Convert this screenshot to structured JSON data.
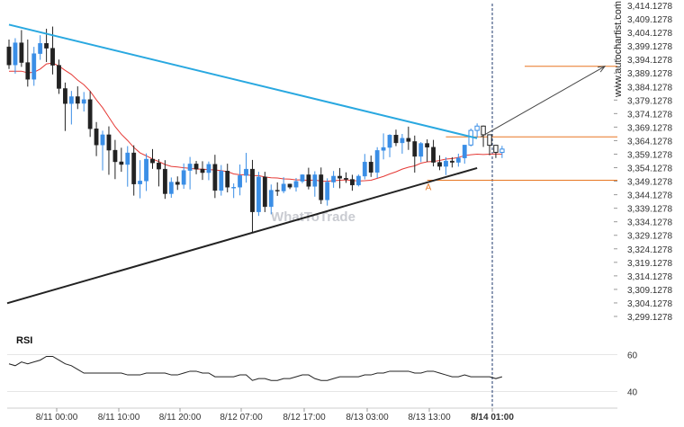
{
  "watermark": "WhatToTrade",
  "brand": "www.autochartist.com",
  "chart_data": [
    {
      "type": "candlestick",
      "title": "",
      "y_ticks": [
        "3,414.1278",
        "3,409.1278",
        "3,404.1278",
        "3,399.1278",
        "3,394.1278",
        "3,389.1278",
        "3,384.1278",
        "3,379.1278",
        "3,374.1278",
        "3,369.1278",
        "3,364.1278",
        "3,359.1278",
        "3,354.1278",
        "3,349.1278",
        "3,344.1278",
        "3,339.1278",
        "3,334.1278",
        "3,329.1278",
        "3,324.1278",
        "3,319.1278",
        "3,314.1278",
        "3,309.1278",
        "3,304.1278",
        "3,299.1278"
      ],
      "ylim": [
        3299.1278,
        3414.1278
      ],
      "x_ticks": [
        "8/11 00:00",
        "8/11 10:00",
        "8/11 20:00",
        "8/12 07:00",
        "8/12 17:00",
        "8/13 03:00",
        "8/13 13:00",
        "8/14 01:00"
      ],
      "highlight_tick": "8/14 01:00",
      "colors": {
        "up": "#3a8ee6",
        "down": "#222222",
        "ma": "#e53935",
        "resistance": "#29a8e0",
        "support": "#222222",
        "level": "#e87722",
        "projection": "#444444",
        "highlight": "#1f3a6e"
      },
      "candles": [
        [
          3398.8,
          3401.5,
          3390.6,
          3392.1
        ],
        [
          3392.1,
          3402.0,
          3388.9,
          3400.3
        ],
        [
          3400.3,
          3405.0,
          3391.4,
          3393.0
        ],
        [
          3393.0,
          3401.5,
          3384.1,
          3386.8
        ],
        [
          3386.8,
          3398.8,
          3384.4,
          3396.3
        ],
        [
          3396.3,
          3403.1,
          3394.0,
          3400.1
        ],
        [
          3400.1,
          3405.5,
          3393.2,
          3398.3
        ],
        [
          3398.3,
          3406.3,
          3388.6,
          3392.0
        ],
        [
          3392.0,
          3394.1,
          3381.4,
          3383.4
        ],
        [
          3383.4,
          3385.6,
          3367.7,
          3377.8
        ],
        [
          3377.8,
          3382.5,
          3370.1,
          3380.4
        ],
        [
          3380.4,
          3384.2,
          3375.8,
          3377.9
        ],
        [
          3377.9,
          3382.1,
          3374.9,
          3379.3
        ],
        [
          3379.3,
          3382.4,
          3365.5,
          3368.5
        ],
        [
          3368.5,
          3371.0,
          3358.4,
          3362.5
        ],
        [
          3362.5,
          3367.8,
          3353.1,
          3366.3
        ],
        [
          3366.3,
          3369.4,
          3351.5,
          3360.6
        ],
        [
          3360.6,
          3364.4,
          3349.9,
          3356.3
        ],
        [
          3356.3,
          3361.5,
          3352.6,
          3355.3
        ],
        [
          3355.3,
          3362.1,
          3347.1,
          3359.6
        ],
        [
          3359.6,
          3362.4,
          3343.8,
          3348.1
        ],
        [
          3348.1,
          3356.9,
          3342.8,
          3349.2
        ],
        [
          3349.2,
          3359.4,
          3345.5,
          3357.3
        ],
        [
          3357.3,
          3361.0,
          3353.7,
          3355.9
        ],
        [
          3355.9,
          3357.3,
          3347.2,
          3353.6
        ],
        [
          3353.6,
          3356.9,
          3342.6,
          3344.5
        ],
        [
          3344.5,
          3350.5,
          3343.0,
          3348.8
        ],
        [
          3348.8,
          3350.9,
          3345.9,
          3347.9
        ],
        [
          3347.9,
          3355.7,
          3346.3,
          3353.1
        ],
        [
          3353.1,
          3358.1,
          3346.1,
          3355.5
        ],
        [
          3355.5,
          3356.6,
          3351.7,
          3353.6
        ],
        [
          3353.6,
          3356.5,
          3349.6,
          3352.3
        ],
        [
          3352.3,
          3356.4,
          3349.5,
          3355.4
        ],
        [
          3355.4,
          3358.9,
          3342.9,
          3345.7
        ],
        [
          3345.7,
          3355.1,
          3343.8,
          3352.9
        ],
        [
          3352.9,
          3355.6,
          3345.0,
          3346.9
        ],
        [
          3346.9,
          3348.3,
          3342.9,
          3346.9
        ],
        [
          3346.9,
          3355.3,
          3343.9,
          3351.2
        ],
        [
          3351.2,
          3359.6,
          3348.6,
          3353.6
        ],
        [
          3353.6,
          3357.0,
          3330.2,
          3337.8
        ],
        [
          3337.8,
          3352.6,
          3336.3,
          3350.7
        ],
        [
          3350.7,
          3352.6,
          3337.7,
          3339.7
        ],
        [
          3339.7,
          3347.9,
          3336.9,
          3345.8
        ],
        [
          3345.8,
          3348.7,
          3343.7,
          3345.5
        ],
        [
          3345.5,
          3350.6,
          3344.7,
          3348.1
        ],
        [
          3348.1,
          3348.2,
          3346.2,
          3346.9
        ],
        [
          3346.9,
          3350.3,
          3345.3,
          3349.1
        ],
        [
          3349.1,
          3351.7,
          3348.4,
          3351.5
        ],
        [
          3351.5,
          3354.1,
          3346.1,
          3347.2
        ],
        [
          3347.2,
          3352.8,
          3343.4,
          3351.5
        ],
        [
          3351.5,
          3354.2,
          3340.7,
          3342.2
        ],
        [
          3342.2,
          3350.2,
          3340.1,
          3348.8
        ],
        [
          3348.8,
          3352.9,
          3346.7,
          3351.0
        ],
        [
          3351.0,
          3354.0,
          3346.5,
          3350.2
        ],
        [
          3350.2,
          3352.4,
          3348.5,
          3349.8
        ],
        [
          3349.8,
          3351.5,
          3345.6,
          3347.7
        ],
        [
          3347.7,
          3351.6,
          3347.2,
          3351.0
        ],
        [
          3351.0,
          3359.2,
          3349.8,
          3356.2
        ],
        [
          3356.2,
          3358.6,
          3350.7,
          3352.4
        ],
        [
          3352.4,
          3361.7,
          3350.3,
          3360.5
        ],
        [
          3360.5,
          3366.8,
          3357.2,
          3361.6
        ],
        [
          3361.6,
          3366.5,
          3358.0,
          3366.2
        ],
        [
          3366.2,
          3368.2,
          3362.1,
          3363.3
        ],
        [
          3363.3,
          3366.6,
          3359.3,
          3365.0
        ],
        [
          3365.0,
          3369.3,
          3360.7,
          3363.8
        ],
        [
          3363.8,
          3366.0,
          3352.3,
          3358.3
        ],
        [
          3358.3,
          3363.6,
          3356.2,
          3363.1
        ],
        [
          3363.1,
          3364.6,
          3356.3,
          3361.7
        ],
        [
          3361.7,
          3364.4,
          3354.6,
          3356.1
        ],
        [
          3356.1,
          3358.7,
          3353.2,
          3354.6
        ],
        [
          3354.6,
          3358.0,
          3351.4,
          3356.6
        ],
        [
          3356.6,
          3358.0,
          3354.2,
          3356.1
        ],
        [
          3356.1,
          3359.3,
          3354.5,
          3357.7
        ],
        [
          3357.7,
          3362.5,
          3355.6,
          3362.5
        ],
        [
          3362.5,
          3368.6,
          3362.0,
          3367.9
        ],
        [
          3367.9,
          3370.5,
          3365.3,
          3369.5
        ],
        [
          3369.5,
          3369.7,
          3361.8,
          3366.3
        ],
        [
          3366.3,
          3366.4,
          3358.7,
          3362.4
        ],
        [
          3362.4,
          3362.5,
          3357.7,
          3359.8
        ],
        [
          3359.8,
          3362.2,
          3357.7,
          3361.0
        ]
      ],
      "ma": [
        3389.8,
        3389.8,
        3389.8,
        3389.2,
        3389.4,
        3390.6,
        3392.5,
        3392.8,
        3391.7,
        3390.1,
        3388.6,
        3386.5,
        3384.8,
        3382.4,
        3379.2,
        3376.3,
        3372.8,
        3369.3,
        3366.5,
        3364.2,
        3361.6,
        3359.6,
        3358.5,
        3357.3,
        3356.4,
        3355.3,
        3354.6,
        3354.4,
        3354.1,
        3353.9,
        3353.6,
        3353.6,
        3353.4,
        3353.3,
        3353.0,
        3352.7,
        3351.8,
        3351.5,
        3351.5,
        3351.2,
        3351.2,
        3350.7,
        3350.4,
        3350.3,
        3350.0,
        3349.9,
        3349.6,
        3349.6,
        3349.4,
        3349.6,
        3349.1,
        3349.1,
        3349.3,
        3349.5,
        3349.6,
        3349.4,
        3349.2,
        3349.3,
        3349.5,
        3350.2,
        3350.9,
        3351.8,
        3352.6,
        3353.6,
        3354.3,
        3354.8,
        3355.8,
        3356.3,
        3356.4,
        3356.8,
        3357.3,
        3357.5,
        3357.9,
        3358.6,
        3358.9,
        3359.1,
        3359.0,
        3359.1,
        3359.2,
        3359.1
      ],
      "resistance_line": [
        [
          3407.0,
          3365.0
        ]
      ],
      "support_line": [
        [
          3304.0,
          3354.0
        ]
      ],
      "level_lines": [
        3391.6,
        3365.5,
        3349.5
      ],
      "pattern_label": "A",
      "projection_target": 3391.6,
      "highlight_time": "8/14 01:00"
    },
    {
      "type": "line",
      "title": "RSI",
      "y_ticks": [
        "60",
        "40"
      ],
      "ylim": [
        32,
        68
      ],
      "values": [
        55,
        54,
        56,
        55,
        56,
        57,
        59,
        59,
        57,
        55,
        54,
        52,
        50,
        50,
        50,
        50,
        50,
        50,
        50,
        49,
        49,
        49,
        50,
        50,
        50,
        50,
        49,
        49,
        50,
        51,
        51,
        50,
        50,
        48,
        48,
        48,
        48,
        49,
        49,
        46,
        47,
        47,
        46,
        46,
        47,
        47,
        48,
        49,
        49,
        47,
        46,
        46,
        47,
        48,
        48,
        48,
        48,
        49,
        49,
        50,
        50,
        51,
        51,
        51,
        51,
        50,
        50,
        51,
        51,
        50,
        49,
        48,
        48,
        49,
        48,
        48,
        48,
        48,
        47,
        48
      ]
    }
  ]
}
